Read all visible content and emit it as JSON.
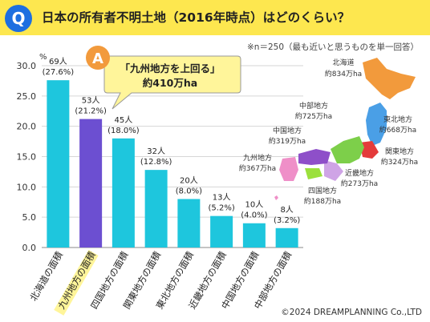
{
  "header": {
    "q_label": "Q",
    "title": "日本の所有者不明土地（2016年時点）はどのくらい？"
  },
  "note": "※n＝250（最も近いと思うものを単一回答）",
  "answer": {
    "a_label": "A",
    "line1": "「九州地方を上回る」",
    "line2": "約410万ha"
  },
  "map_labels": [
    {
      "region": "北海道",
      "area": "約834万ha"
    },
    {
      "region": "東北地方",
      "area": "約668万ha"
    },
    {
      "region": "中部地方",
      "area": "約725万ha"
    },
    {
      "region": "中国地方",
      "area": "約319万ha"
    },
    {
      "region": "関東地方",
      "area": "約324万ha"
    },
    {
      "region": "九州地方",
      "area": "約367万ha"
    },
    {
      "region": "近畿地方",
      "area": "約273万ha"
    },
    {
      "region": "四国地方",
      "area": "約188万ha"
    }
  ],
  "copyright": "©2024 DREAMPLANNING Co.,LTD",
  "colors": {
    "bar": "#1ec6dd",
    "highlight_bar": "#6c4fd1",
    "header_bg": "#fde74f",
    "badge": "#1d6fe0",
    "callout_bg": "#fff59a"
  },
  "chart_data": {
    "type": "bar",
    "ylabel": "%",
    "ylim": [
      0,
      30
    ],
    "yticks": [
      "0.0",
      "5.0",
      "10.0",
      "15.0",
      "20.0",
      "25.0",
      "30.0"
    ],
    "grid": true,
    "categories": [
      "北海道の面積",
      "九州地方の面積",
      "四国地方の面積",
      "関東地方の面積",
      "東北地方の面積",
      "近畿地方の面積",
      "中国地方の面積",
      "中部地方の面積"
    ],
    "values": [
      27.6,
      21.2,
      18.0,
      12.8,
      8.0,
      5.2,
      4.0,
      3.2
    ],
    "counts": [
      "69人",
      "53人",
      "45人",
      "32人",
      "20人",
      "13人",
      "10人",
      "8人"
    ],
    "pct_labels": [
      "(27.6%)",
      "(21.2%)",
      "(18.0%)",
      "(12.8%)",
      "(8.0%)",
      "(5.2%)",
      "(4.0%)",
      "(3.2%)"
    ],
    "highlight_index": 1
  }
}
